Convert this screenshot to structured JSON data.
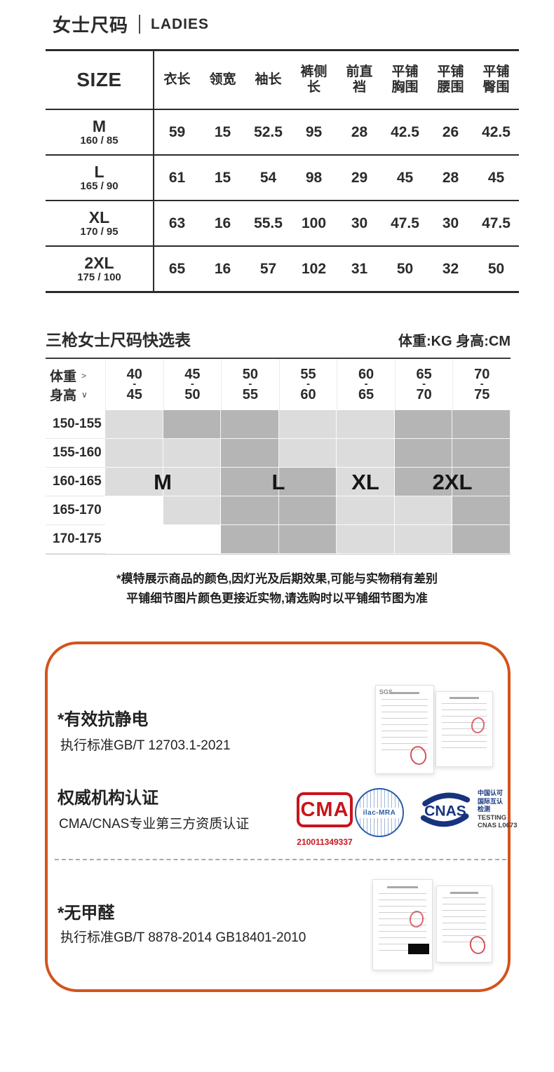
{
  "header": {
    "title_cn": "女士尺码",
    "title_en": "LADIES"
  },
  "size_table": {
    "corner_label": "SIZE",
    "columns": [
      [
        "衣长"
      ],
      [
        "领宽"
      ],
      [
        "袖长"
      ],
      [
        "裤侧",
        "长"
      ],
      [
        "前直",
        "裆"
      ],
      [
        "平铺",
        "胸围"
      ],
      [
        "平铺",
        "腰围"
      ],
      [
        "平铺",
        "臀围"
      ]
    ],
    "rows": [
      {
        "size": "M",
        "spec": "160 / 85",
        "values": [
          "59",
          "15",
          "52.5",
          "95",
          "28",
          "42.5",
          "26",
          "42.5"
        ]
      },
      {
        "size": "L",
        "spec": "165 / 90",
        "values": [
          "61",
          "15",
          "54",
          "98",
          "29",
          "45",
          "28",
          "45"
        ]
      },
      {
        "size": "XL",
        "spec": "170 / 95",
        "values": [
          "63",
          "16",
          "55.5",
          "100",
          "30",
          "47.5",
          "30",
          "47.5"
        ]
      },
      {
        "size": "2XL",
        "spec": "175 / 100",
        "values": [
          "65",
          "16",
          "57",
          "102",
          "31",
          "50",
          "32",
          "50"
        ]
      }
    ]
  },
  "quick_table": {
    "title": "三枪女士尺码快选表",
    "units": "体重:KG 身高:CM",
    "corner": {
      "weight_label": "体重",
      "weight_arrow": ">",
      "height_label": "身高",
      "height_arrow": "∨"
    },
    "dash": "-",
    "weight_cols": [
      [
        "40",
        "45"
      ],
      [
        "45",
        "50"
      ],
      [
        "50",
        "55"
      ],
      [
        "55",
        "60"
      ],
      [
        "60",
        "65"
      ],
      [
        "65",
        "70"
      ],
      [
        "70",
        "75"
      ]
    ],
    "height_rows": [
      "150-155",
      "155-160",
      "160-165",
      "165-170",
      "170-175"
    ],
    "cells": [
      [
        "L",
        "M",
        "M",
        "L",
        "L",
        "M",
        "M"
      ],
      [
        "L",
        "L",
        "M",
        "L",
        "L",
        "M",
        "M"
      ],
      [
        "L",
        "L",
        "M",
        "M",
        "L",
        "M",
        "M"
      ],
      [
        "W",
        "L",
        "M",
        "M",
        "L",
        "L",
        "M"
      ],
      [
        "W",
        "W",
        "M",
        "M",
        "L",
        "L",
        "M"
      ]
    ],
    "cell_colors": {
      "W": "#ffffff",
      "L": "#dcdcdc",
      "M": "#b5b5b5"
    },
    "size_labels": [
      "M",
      "L",
      "XL",
      "2XL"
    ]
  },
  "disclaimer": {
    "line1": "*模特展示商品的颜色,因灯光及后期效果,可能与实物稍有差别",
    "line2": "平铺细节图片颜色更接近实物,请选购时以平铺细节图为准"
  },
  "cert_box": {
    "border_color": "#d4531c",
    "sections": [
      {
        "heading": "*有效抗静电",
        "sub": "执行标准GB/T 12703.1-2021"
      },
      {
        "heading": "权威机构认证",
        "sub": "CMA/CNAS专业第三方资质认证"
      },
      {
        "heading": "*无甲醛",
        "sub": "执行标准GB/T 8878-2014  GB18401-2010"
      }
    ],
    "sgs_label": "SGS",
    "logos": {
      "cma": {
        "label": "CMA",
        "number": "210011349337",
        "color": "#c8151b"
      },
      "ilac": {
        "label": "ilac-MRA",
        "color": "#2a5caa"
      },
      "cnas": {
        "label": "CNAS",
        "color": "#16337f",
        "lines": [
          "中国认可",
          "国际互认",
          "检测",
          "TESTING",
          "CNAS L0673"
        ]
      }
    }
  }
}
